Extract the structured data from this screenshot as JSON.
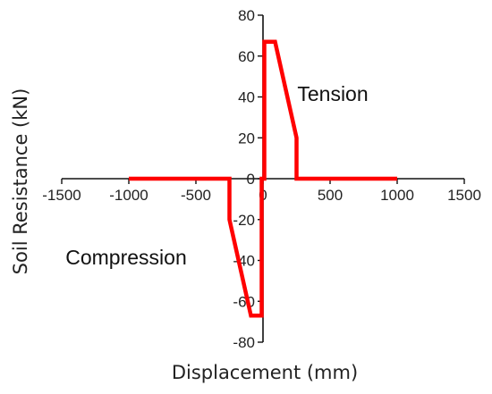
{
  "chart_data": {
    "type": "line",
    "title": "",
    "xlabel": "Displacement (mm)",
    "ylabel": "Soil Resistance (kN)",
    "xlim": [
      -1500,
      1500
    ],
    "ylim": [
      -80,
      80
    ],
    "x_ticks": [
      -1500,
      -1000,
      -500,
      0,
      500,
      1000,
      1500
    ],
    "y_ticks": [
      -80,
      -60,
      -40,
      -20,
      0,
      20,
      40,
      60,
      80
    ],
    "axis_placement": "centered at origin",
    "grid": false,
    "legend": "none",
    "series": [
      {
        "color": "#ff0000",
        "x": [
          -1000,
          -250,
          -250,
          -90,
          -10,
          -10,
          10,
          10,
          90,
          250,
          250,
          1000
        ],
        "y": [
          0,
          0,
          -20,
          -67,
          -67,
          0,
          0,
          67,
          67,
          20,
          0,
          0
        ]
      }
    ],
    "annotations": [
      {
        "text": "Tension",
        "x": 520,
        "y": 38
      },
      {
        "text": "Compression",
        "x": -1020,
        "y": -42
      }
    ]
  }
}
